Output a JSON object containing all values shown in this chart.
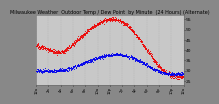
{
  "title": "Milwaukee Weather  Outdoor Temp / Dew Point  by Minute  (24 Hours) (Alternate)",
  "bg_color": "#888888",
  "plot_bg": "#c8c8c8",
  "outer_bg": "#888888",
  "ylim": [
    23,
    57
  ],
  "yticks": [
    25,
    30,
    35,
    40,
    45,
    50,
    55
  ],
  "grid_color": "#aaaaaa",
  "red_color": "#ee0000",
  "blue_color": "#0000ee",
  "title_fontsize": 3.5,
  "tick_fontsize": 3.2,
  "title_color": "#000000",
  "tick_color": "#000000"
}
